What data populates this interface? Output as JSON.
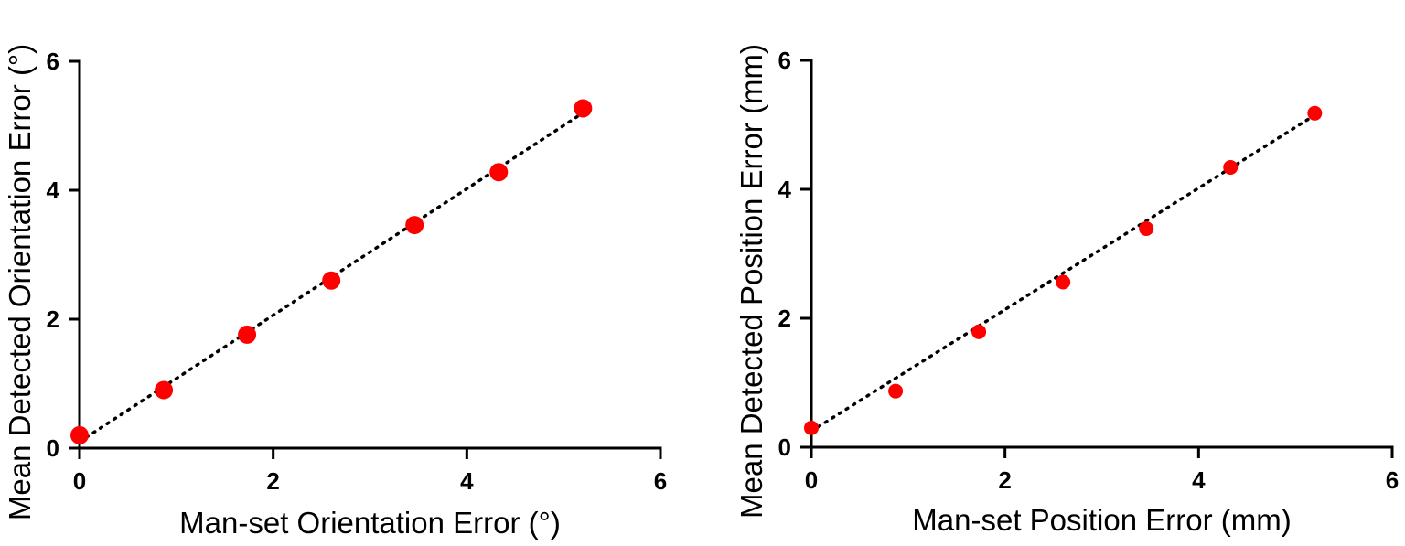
{
  "chart_data": [
    {
      "type": "scatter",
      "xlabel": "Man-set Orientation Error (°)",
      "ylabel": "Mean Detected Orientation Error (°)",
      "xlim": [
        0,
        6
      ],
      "ylim": [
        0,
        6
      ],
      "xticks": [
        "0",
        "2",
        "4",
        "6"
      ],
      "yticks": [
        "0",
        "2",
        "4",
        "6"
      ],
      "series": [
        {
          "x": [
            0,
            0.87,
            1.73,
            2.6,
            3.46,
            4.33,
            5.2
          ],
          "y": [
            0.2,
            0.9,
            1.76,
            2.6,
            3.46,
            4.28,
            5.27
          ]
        }
      ],
      "fit_line": {
        "x": [
          0,
          5.2
        ],
        "y": [
          0.1,
          5.2
        ],
        "style": "dotted"
      },
      "marker_color": "#ff0000",
      "grid": false
    },
    {
      "type": "scatter",
      "xlabel": "Man-set Position Error (mm)",
      "ylabel": "Mean Detected Position Error (mm)",
      "xlim": [
        0,
        6
      ],
      "ylim": [
        0,
        6
      ],
      "xticks": [
        "0",
        "2",
        "4",
        "6"
      ],
      "yticks": [
        "0",
        "2",
        "4",
        "6"
      ],
      "series": [
        {
          "x": [
            0,
            0.87,
            1.73,
            2.6,
            3.46,
            4.33,
            5.2
          ],
          "y": [
            0.3,
            0.87,
            1.79,
            2.56,
            3.39,
            4.34,
            5.18
          ]
        }
      ],
      "fit_line": {
        "x": [
          0,
          5.2
        ],
        "y": [
          0.25,
          5.15
        ],
        "style": "dotted"
      },
      "marker_color": "#ff0000",
      "grid": false
    }
  ]
}
